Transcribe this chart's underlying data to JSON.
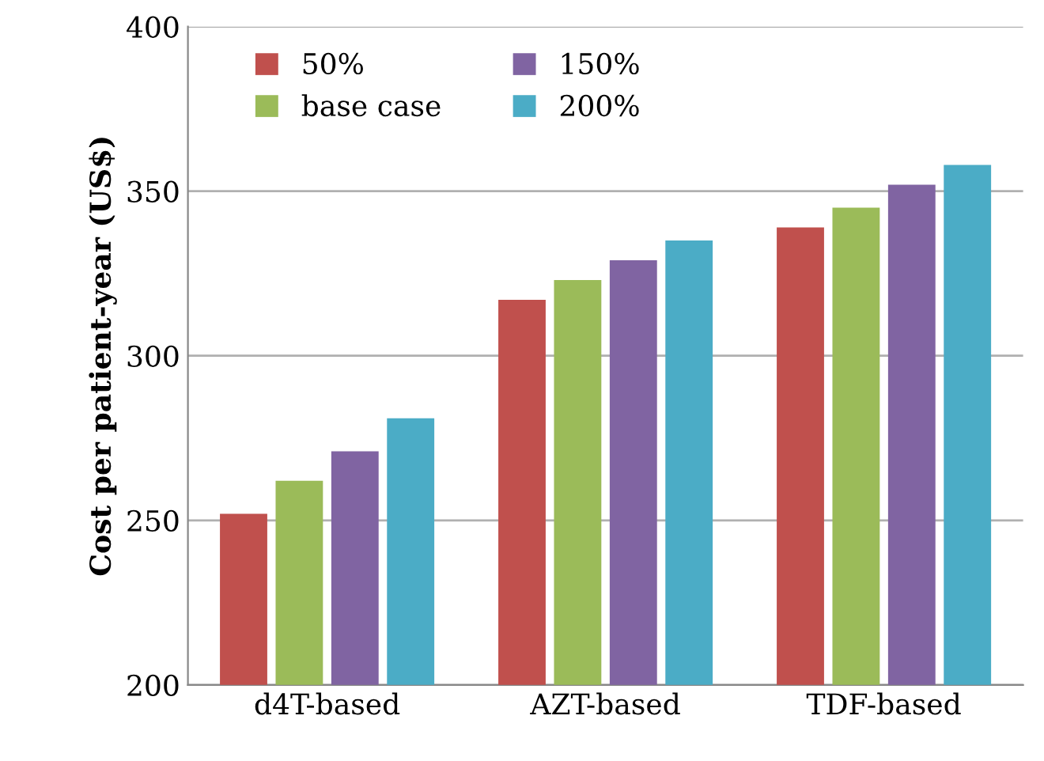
{
  "chart_data": {
    "type": "bar",
    "ylabel": "Cost per patient-year (US$)",
    "categories": [
      "d4T-based",
      "AZT-based",
      "TDF-based"
    ],
    "series": [
      {
        "name": "50%",
        "color": "#c0504d",
        "values": [
          252,
          317,
          339
        ]
      },
      {
        "name": "base case",
        "color": "#9bbb59",
        "values": [
          262,
          323,
          345
        ]
      },
      {
        "name": "150%",
        "color": "#8064a2",
        "values": [
          271,
          329,
          352
        ]
      },
      {
        "name": "200%",
        "color": "#4bacc6",
        "values": [
          281,
          335,
          358
        ]
      }
    ],
    "ylim": [
      200,
      400
    ],
    "yticks": [
      200,
      250,
      300,
      350,
      400
    ],
    "grid": "y",
    "legend": "top left"
  }
}
